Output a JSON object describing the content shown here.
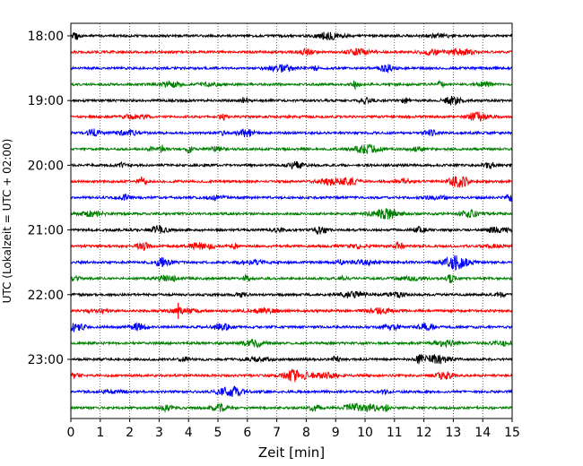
{
  "chart_data": {
    "type": "line",
    "title": "",
    "xlabel": "Zeit  [min]",
    "ylabel": "UTC (Lokalzeit = UTC + 02:00)",
    "xlim": [
      0,
      15
    ],
    "x_ticks": [
      "0",
      "1",
      "2",
      "3",
      "4",
      "5",
      "6",
      "7",
      "8",
      "9",
      "10",
      "11",
      "12",
      "13",
      "14",
      "15"
    ],
    "y_tick_labels": [
      "18:00",
      "19:00",
      "20:00",
      "21:00",
      "22:00",
      "23:00"
    ],
    "grid": "vertical dotted lines at each minute",
    "legend": "none",
    "trace_colors_cycle": [
      "#000000",
      "#ff0000",
      "#0000ff",
      "#008000"
    ],
    "traces": [
      {
        "start": "18:00",
        "color": "#000000"
      },
      {
        "start": "18:15",
        "color": "#ff0000"
      },
      {
        "start": "18:30",
        "color": "#0000ff"
      },
      {
        "start": "18:45",
        "color": "#008000"
      },
      {
        "start": "19:00",
        "color": "#000000"
      },
      {
        "start": "19:15",
        "color": "#ff0000"
      },
      {
        "start": "19:30",
        "color": "#0000ff"
      },
      {
        "start": "19:45",
        "color": "#008000"
      },
      {
        "start": "20:00",
        "color": "#000000"
      },
      {
        "start": "20:15",
        "color": "#ff0000"
      },
      {
        "start": "20:30",
        "color": "#0000ff"
      },
      {
        "start": "20:45",
        "color": "#008000"
      },
      {
        "start": "21:00",
        "color": "#000000"
      },
      {
        "start": "21:15",
        "color": "#ff0000"
      },
      {
        "start": "21:30",
        "color": "#0000ff"
      },
      {
        "start": "21:45",
        "color": "#008000"
      },
      {
        "start": "22:00",
        "color": "#000000"
      },
      {
        "start": "22:15",
        "color": "#ff0000"
      },
      {
        "start": "22:30",
        "color": "#0000ff"
      },
      {
        "start": "22:45",
        "color": "#008000"
      },
      {
        "start": "23:00",
        "color": "#000000"
      },
      {
        "start": "23:15",
        "color": "#ff0000"
      },
      {
        "start": "23:30",
        "color": "#0000ff"
      },
      {
        "start": "23:45",
        "color": "#008000"
      }
    ]
  }
}
